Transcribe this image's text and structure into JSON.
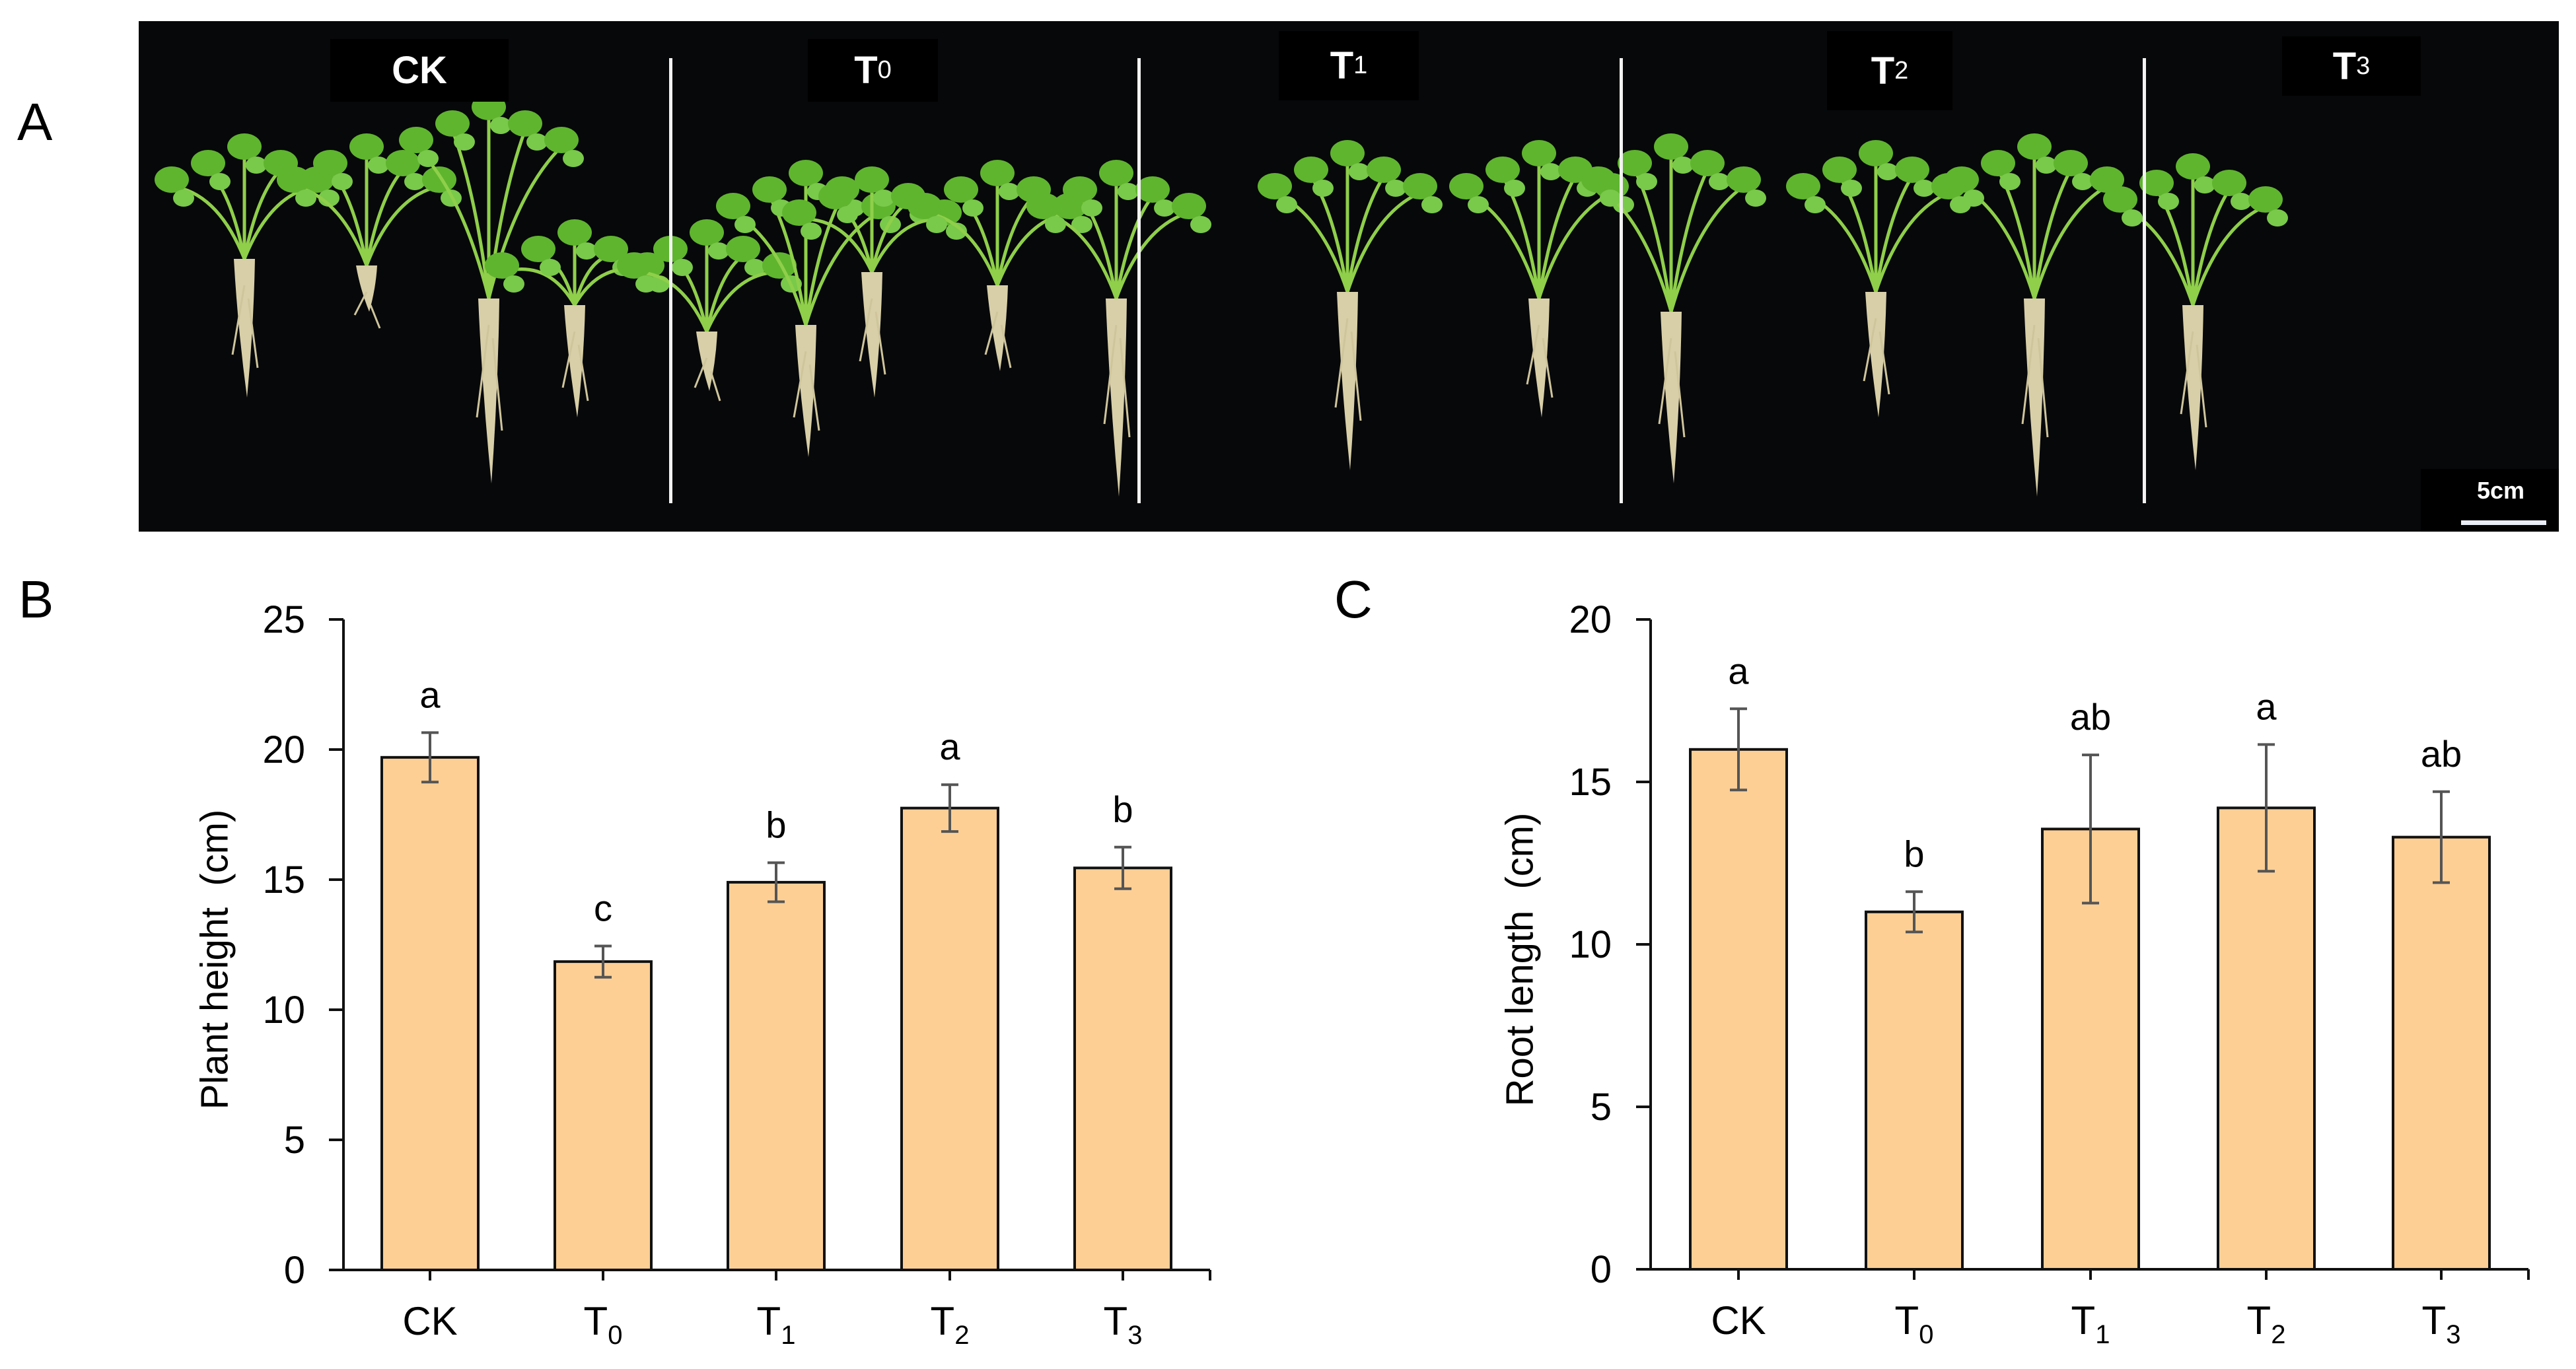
{
  "figure": {
    "panel_labels": {
      "a": "A",
      "b": "B",
      "c": "C"
    },
    "photo": {
      "groups": [
        {
          "base": "CK",
          "sub": ""
        },
        {
          "base": "T",
          "sub": "0"
        },
        {
          "base": "T",
          "sub": "1"
        },
        {
          "base": "T",
          "sub": "2"
        },
        {
          "base": "T",
          "sub": "3"
        }
      ],
      "scale_bar_label": "5cm",
      "background_color": "#07080a"
    },
    "colors": {
      "bar_fill": "#fdcf95",
      "bar_edge": "#111111",
      "error_bar": "#555555",
      "axis": "#111111"
    }
  },
  "chart_data": [
    {
      "type": "bar",
      "panel": "B",
      "title": "",
      "xlabel": "",
      "ylabel": "Plant height  (cm)",
      "categories": [
        "CK",
        "T0",
        "T1",
        "T2",
        "T3"
      ],
      "category_display": [
        {
          "base": "CK",
          "sub": ""
        },
        {
          "base": "T",
          "sub": "0"
        },
        {
          "base": "T",
          "sub": "1"
        },
        {
          "base": "T",
          "sub": "2"
        },
        {
          "base": "T",
          "sub": "3"
        }
      ],
      "values": [
        19.7,
        11.85,
        14.9,
        17.75,
        15.45
      ],
      "error": [
        0.95,
        0.6,
        0.75,
        0.9,
        0.8
      ],
      "significance_letters": [
        "a",
        "c",
        "b",
        "a",
        "b"
      ],
      "ylim": [
        0,
        25
      ],
      "yticks": [
        0,
        5,
        10,
        15,
        20,
        25
      ],
      "grid": false,
      "legend": null
    },
    {
      "type": "bar",
      "panel": "C",
      "title": "",
      "xlabel": "",
      "ylabel": "Root length  (cm)",
      "categories": [
        "CK",
        "T0",
        "T1",
        "T2",
        "T3"
      ],
      "category_display": [
        {
          "base": "CK",
          "sub": ""
        },
        {
          "base": "T",
          "sub": "0"
        },
        {
          "base": "T",
          "sub": "1"
        },
        {
          "base": "T",
          "sub": "2"
        },
        {
          "base": "T",
          "sub": "3"
        }
      ],
      "values": [
        16.0,
        11.0,
        13.55,
        14.2,
        13.3
      ],
      "error": [
        1.25,
        0.62,
        2.28,
        1.95,
        1.4
      ],
      "significance_letters": [
        "a",
        "b",
        "ab",
        "a",
        "ab"
      ],
      "ylim": [
        0,
        20
      ],
      "yticks": [
        0,
        5,
        10,
        15,
        20
      ],
      "grid": false,
      "legend": null
    }
  ]
}
